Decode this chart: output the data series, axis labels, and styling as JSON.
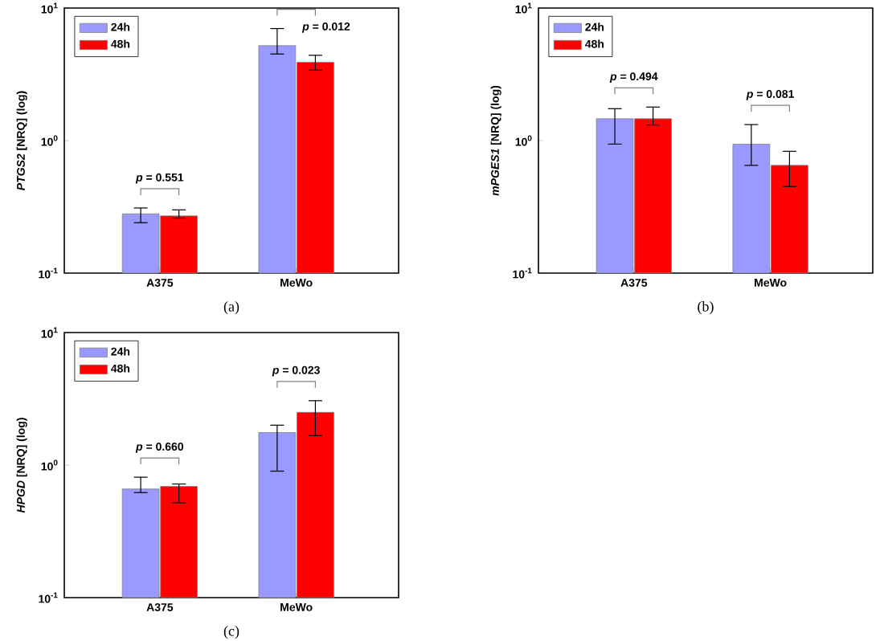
{
  "chart_data": [
    {
      "type": "bar",
      "title": "(a)",
      "ylabel": "*PTGS2* [NRQ] (log)",
      "categories": [
        "A375",
        "MeWo"
      ],
      "log": "y",
      "ylim": [
        0.1,
        10
      ],
      "yticks": [
        {
          "value": 0.1,
          "label": "10$^{-1}$"
        },
        {
          "value": 1,
          "label": "10$^{0}$"
        },
        {
          "value": 10,
          "label": "10$^{1}$"
        }
      ],
      "legend": "top left",
      "series": [
        {
          "name": "24h",
          "color": "#9999ff",
          "values": [
            0.28,
            5.2
          ],
          "errors": [
            [
              0.24,
              0.31
            ],
            [
              4.5,
              7.0
            ]
          ]
        },
        {
          "name": "48h",
          "color": "#ff0000",
          "values": [
            0.27,
            3.9
          ],
          "errors": [
            [
              0.26,
              0.3
            ],
            [
              3.4,
              4.4
            ]
          ]
        }
      ],
      "annotations": [
        "*p* = 0.551",
        "*p* = 0.012"
      ]
    },
    {
      "type": "bar",
      "title": "(b)",
      "ylabel": "*mPGES1* [NRQ] (log)",
      "categories": [
        "A375",
        "MeWo"
      ],
      "log": "y",
      "ylim": [
        0.1,
        10
      ],
      "yticks": [
        {
          "value": 0.1,
          "label": "10$^{-1}$"
        },
        {
          "value": 1,
          "label": "10$^{0}$"
        },
        {
          "value": 10,
          "label": "10$^{1}$"
        }
      ],
      "legend": "top left",
      "series": [
        {
          "name": "24h",
          "color": "#9999ff",
          "values": [
            1.46,
            0.94
          ],
          "errors": [
            [
              0.94,
              1.74
            ],
            [
              0.65,
              1.32
            ]
          ]
        },
        {
          "name": "48h",
          "color": "#ff0000",
          "values": [
            1.46,
            0.65
          ],
          "errors": [
            [
              1.31,
              1.79
            ],
            [
              0.45,
              0.83
            ]
          ]
        }
      ],
      "annotations": [
        "*p* = 0.494",
        "*p* = 0.081"
      ]
    },
    {
      "type": "bar",
      "title": "(c)",
      "ylabel": "*HPGD* [NRQ] (log)",
      "categories": [
        "A375",
        "MeWo"
      ],
      "log": "y",
      "ylim": [
        0.1,
        10
      ],
      "yticks": [
        {
          "value": 0.1,
          "label": "10$^{-1}$"
        },
        {
          "value": 1,
          "label": "10$^{0}$"
        },
        {
          "value": 10,
          "label": "10$^{1}$"
        }
      ],
      "legend": "top left",
      "series": [
        {
          "name": "24h",
          "color": "#9999ff",
          "values": [
            0.66,
            1.76
          ],
          "errors": [
            [
              0.62,
              0.81
            ],
            [
              0.9,
              2.0
            ]
          ]
        },
        {
          "name": "48h",
          "color": "#ff0000",
          "values": [
            0.69,
            2.5
          ],
          "errors": [
            [
              0.52,
              0.72
            ],
            [
              1.67,
              3.06
            ]
          ]
        }
      ],
      "annotations": [
        "*p* = 0.660",
        "*p* = 0.023"
      ]
    }
  ]
}
